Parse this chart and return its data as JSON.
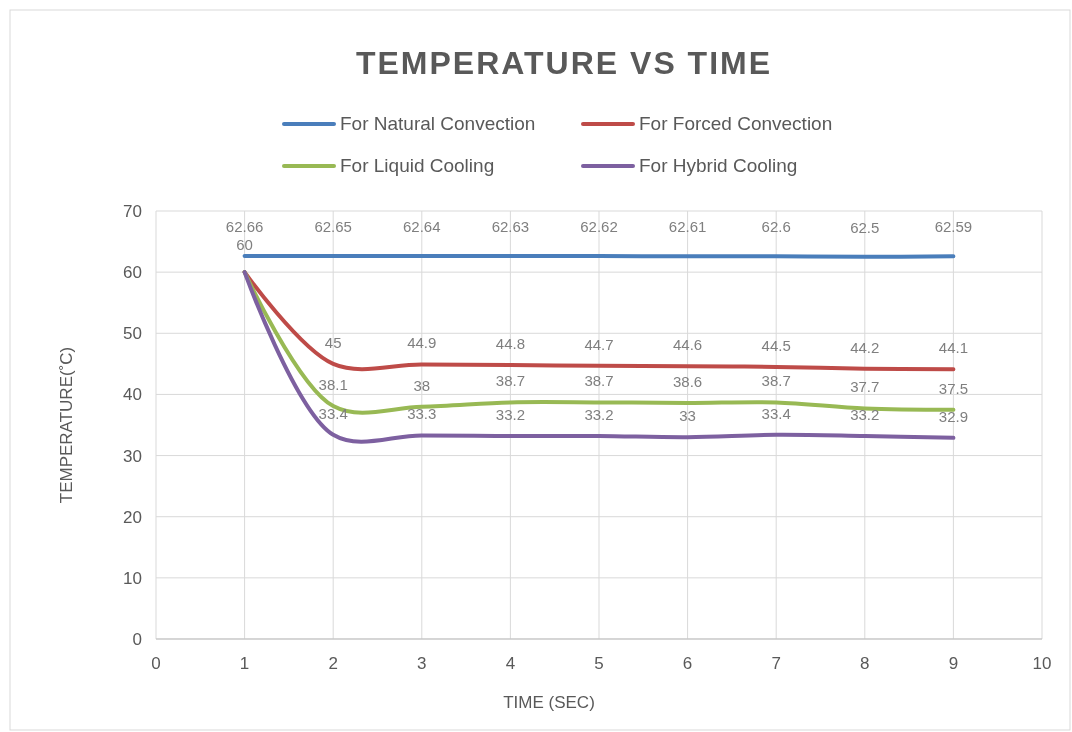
{
  "chart_data": {
    "type": "line",
    "title": "TEMPERATURE VS TIME",
    "xlabel": "TIME (SEC)",
    "ylabel": "TEMPERATURE(˚C)",
    "x": [
      1,
      2,
      3,
      4,
      5,
      6,
      7,
      8,
      9
    ],
    "xlim": [
      0,
      10
    ],
    "xticks": [
      0,
      1,
      2,
      3,
      4,
      5,
      6,
      7,
      8,
      9,
      10
    ],
    "ylim": [
      0,
      70
    ],
    "yticks": [
      0,
      10,
      20,
      30,
      40,
      50,
      60,
      70
    ],
    "grid": true,
    "legend": "top",
    "marker": "none",
    "line_style": "solid",
    "series": [
      {
        "name": "For Natural Convection",
        "color": "#4a7ebb",
        "values": [
          62.66,
          62.65,
          62.64,
          62.63,
          62.62,
          62.61,
          62.6,
          62.5,
          62.59
        ],
        "value_labels": [
          "62.66",
          "62.65",
          "62.64",
          "62.63",
          "62.62",
          "62.61",
          "62.6",
          "62.5",
          "62.59"
        ]
      },
      {
        "name": "For Forced Convection",
        "color": "#be4b48",
        "values": [
          60,
          45,
          44.9,
          44.8,
          44.7,
          44.6,
          44.5,
          44.2,
          44.1
        ],
        "value_labels": [
          "60",
          "45",
          "44.9",
          "44.8",
          "44.7",
          "44.6",
          "44.5",
          "44.2",
          "44.1"
        ]
      },
      {
        "name": "For Liquid Cooling",
        "color": "#98b954",
        "values": [
          60,
          38.1,
          38,
          38.7,
          38.7,
          38.6,
          38.7,
          37.7,
          37.5
        ],
        "value_labels": [
          null,
          "38.1",
          "38",
          "38.7",
          "38.7",
          "38.6",
          "38.7",
          "37.7",
          "37.5"
        ]
      },
      {
        "name": "For Hybrid Cooling",
        "color": "#7d60a0",
        "values": [
          60,
          33.4,
          33.3,
          33.2,
          33.2,
          33,
          33.4,
          33.2,
          32.9
        ],
        "value_labels": [
          null,
          "33.4",
          "33.3",
          "33.2",
          "33.2",
          "33",
          "33.4",
          "33.2",
          "32.9"
        ]
      }
    ]
  }
}
